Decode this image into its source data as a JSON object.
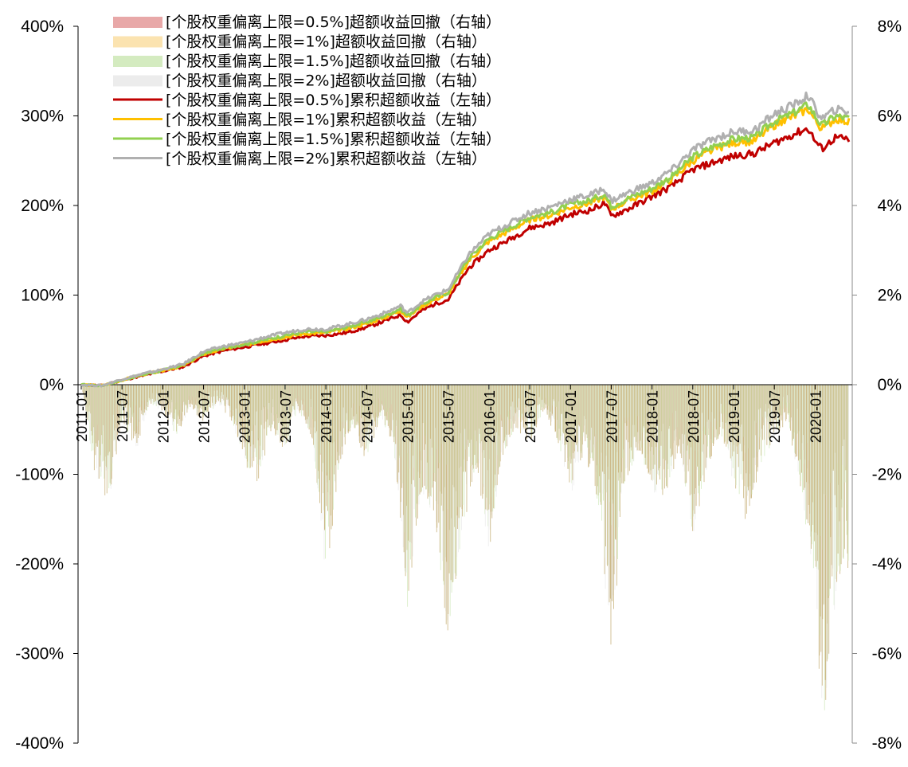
{
  "chart_data": {
    "type": "line",
    "left_axis": {
      "min": -400,
      "max": 400,
      "ticks": [
        "400%",
        "300%",
        "200%",
        "100%",
        "0%",
        "-100%",
        "-200%",
        "-300%",
        "-400%"
      ]
    },
    "right_axis": {
      "min": -8,
      "max": 8,
      "ticks": [
        "8%",
        "6%",
        "4%",
        "2%",
        "0%",
        "-2%",
        "-4%",
        "-6%",
        "-8%"
      ]
    },
    "x_ticks": [
      "2011-01",
      "2011-07",
      "2012-01",
      "2012-07",
      "2013-01",
      "2013-07",
      "2014-01",
      "2014-07",
      "2015-01",
      "2015-07",
      "2016-01",
      "2016-07",
      "2017-01",
      "2017-07",
      "2018-01",
      "2018-07",
      "2019-01",
      "2019-07",
      "2020-01"
    ],
    "x_range": [
      "2011-01",
      "2020-06"
    ],
    "legend": {
      "placement": "top-left",
      "entries": [
        {
          "label": "[个股权重偏离上限=0.5%]超额收益回撤（右轴）",
          "kind": "area",
          "color": "#e8a8a8"
        },
        {
          "label": "[个股权重偏离上限=1%]超额收益回撤（右轴）",
          "kind": "area",
          "color": "#fbe3b0"
        },
        {
          "label": "[个股权重偏离上限=1.5%]超额收益回撤（右轴）",
          "kind": "area",
          "color": "#d4ebc0"
        },
        {
          "label": "[个股权重偏离上限=2%]超额收益回撤（右轴）",
          "kind": "area",
          "color": "#ececec"
        },
        {
          "label": "[个股权重偏离上限=0.5%]累积超额收益（左轴）",
          "kind": "line",
          "color": "#c00000"
        },
        {
          "label": "[个股权重偏离上限=1%]累积超额收益（左轴）",
          "kind": "line",
          "color": "#ffc000"
        },
        {
          "label": "[个股权重偏离上限=1.5%]累积超额收益（左轴）",
          "kind": "line",
          "color": "#92d050"
        },
        {
          "label": "[个股权重偏离上限=2%]累积超额收益（左轴）",
          "kind": "line",
          "color": "#b0b0b0"
        }
      ]
    },
    "line_series": [
      {
        "name": "[个股权重偏离上限=0.5%]累积超额收益（左轴）",
        "axis": "left",
        "color": "#c00000",
        "points": [
          [
            "2011-01",
            0
          ],
          [
            "2011-04",
            -1
          ],
          [
            "2011-07",
            5
          ],
          [
            "2011-10",
            10
          ],
          [
            "2012-01",
            15
          ],
          [
            "2012-04",
            20
          ],
          [
            "2012-07",
            32
          ],
          [
            "2012-10",
            38
          ],
          [
            "2013-01",
            42
          ],
          [
            "2013-04",
            46
          ],
          [
            "2013-07",
            50
          ],
          [
            "2013-10",
            54
          ],
          [
            "2014-01",
            55
          ],
          [
            "2014-04",
            58
          ],
          [
            "2014-07",
            64
          ],
          [
            "2014-10",
            72
          ],
          [
            "2014-12",
            78
          ],
          [
            "2015-01",
            70
          ],
          [
            "2015-03",
            82
          ],
          [
            "2015-05",
            90
          ],
          [
            "2015-07",
            95
          ],
          [
            "2015-10",
            130
          ],
          [
            "2016-01",
            150
          ],
          [
            "2016-04",
            162
          ],
          [
            "2016-07",
            175
          ],
          [
            "2016-10",
            180
          ],
          [
            "2017-01",
            190
          ],
          [
            "2017-04",
            195
          ],
          [
            "2017-06",
            203
          ],
          [
            "2017-07",
            188
          ],
          [
            "2017-10",
            198
          ],
          [
            "2018-01",
            210
          ],
          [
            "2018-04",
            222
          ],
          [
            "2018-07",
            240
          ],
          [
            "2018-10",
            248
          ],
          [
            "2019-01",
            255
          ],
          [
            "2019-04",
            258
          ],
          [
            "2019-07",
            270
          ],
          [
            "2019-10",
            280
          ],
          [
            "2019-12",
            286
          ],
          [
            "2020-01",
            272
          ],
          [
            "2020-02",
            263
          ],
          [
            "2020-04",
            276
          ],
          [
            "2020-06",
            273
          ]
        ]
      },
      {
        "name": "[个股权重偏离上限=1%]累积超额收益（左轴）",
        "axis": "left",
        "color": "#ffc000",
        "points": [
          [
            "2011-01",
            0
          ],
          [
            "2011-04",
            -1
          ],
          [
            "2011-07",
            5
          ],
          [
            "2011-10",
            11
          ],
          [
            "2012-01",
            16
          ],
          [
            "2012-04",
            21
          ],
          [
            "2012-07",
            34
          ],
          [
            "2012-10",
            40
          ],
          [
            "2013-01",
            44
          ],
          [
            "2013-04",
            49
          ],
          [
            "2013-07",
            53
          ],
          [
            "2013-10",
            57
          ],
          [
            "2014-01",
            58
          ],
          [
            "2014-04",
            62
          ],
          [
            "2014-07",
            68
          ],
          [
            "2014-10",
            76
          ],
          [
            "2014-12",
            83
          ],
          [
            "2015-01",
            75
          ],
          [
            "2015-03",
            87
          ],
          [
            "2015-05",
            95
          ],
          [
            "2015-07",
            101
          ],
          [
            "2015-10",
            138
          ],
          [
            "2016-01",
            160
          ],
          [
            "2016-04",
            172
          ],
          [
            "2016-07",
            184
          ],
          [
            "2016-10",
            189
          ],
          [
            "2017-01",
            198
          ],
          [
            "2017-04",
            203
          ],
          [
            "2017-06",
            210
          ],
          [
            "2017-07",
            196
          ],
          [
            "2017-10",
            207
          ],
          [
            "2018-01",
            216
          ],
          [
            "2018-04",
            230
          ],
          [
            "2018-07",
            250
          ],
          [
            "2018-10",
            262
          ],
          [
            "2019-01",
            270
          ],
          [
            "2019-04",
            272
          ],
          [
            "2019-07",
            290
          ],
          [
            "2019-10",
            300
          ],
          [
            "2019-12",
            308
          ],
          [
            "2020-01",
            295
          ],
          [
            "2020-02",
            285
          ],
          [
            "2020-04",
            297
          ],
          [
            "2020-06",
            293
          ]
        ]
      },
      {
        "name": "[个股权重偏离上限=1.5%]累积超额收益（左轴）",
        "axis": "left",
        "color": "#92d050",
        "points": [
          [
            "2011-01",
            0
          ],
          [
            "2011-04",
            -1
          ],
          [
            "2011-07",
            5
          ],
          [
            "2011-10",
            11
          ],
          [
            "2012-01",
            16
          ],
          [
            "2012-04",
            22
          ],
          [
            "2012-07",
            35
          ],
          [
            "2012-10",
            41
          ],
          [
            "2013-01",
            45
          ],
          [
            "2013-04",
            50
          ],
          [
            "2013-07",
            55
          ],
          [
            "2013-10",
            59
          ],
          [
            "2014-01",
            59
          ],
          [
            "2014-04",
            64
          ],
          [
            "2014-07",
            70
          ],
          [
            "2014-10",
            78
          ],
          [
            "2014-12",
            85
          ],
          [
            "2015-01",
            77
          ],
          [
            "2015-03",
            89
          ],
          [
            "2015-05",
            97
          ],
          [
            "2015-07",
            103
          ],
          [
            "2015-10",
            141
          ],
          [
            "2016-01",
            163
          ],
          [
            "2016-04",
            175
          ],
          [
            "2016-07",
            187
          ],
          [
            "2016-10",
            192
          ],
          [
            "2017-01",
            201
          ],
          [
            "2017-04",
            206
          ],
          [
            "2017-06",
            213
          ],
          [
            "2017-07",
            199
          ],
          [
            "2017-10",
            210
          ],
          [
            "2018-01",
            219
          ],
          [
            "2018-04",
            233
          ],
          [
            "2018-07",
            254
          ],
          [
            "2018-10",
            266
          ],
          [
            "2019-01",
            274
          ],
          [
            "2019-04",
            276
          ],
          [
            "2019-07",
            294
          ],
          [
            "2019-10",
            304
          ],
          [
            "2019-12",
            313
          ],
          [
            "2020-01",
            300
          ],
          [
            "2020-02",
            289
          ],
          [
            "2020-04",
            300
          ],
          [
            "2020-06",
            297
          ]
        ]
      },
      {
        "name": "[个股权重偏离上限=2%]累积超额收益（左轴）",
        "axis": "left",
        "color": "#b0b0b0",
        "points": [
          [
            "2011-01",
            0
          ],
          [
            "2011-04",
            -1
          ],
          [
            "2011-07",
            6
          ],
          [
            "2011-10",
            12
          ],
          [
            "2012-01",
            17
          ],
          [
            "2012-04",
            23
          ],
          [
            "2012-07",
            37
          ],
          [
            "2012-10",
            43
          ],
          [
            "2013-01",
            47
          ],
          [
            "2013-04",
            53
          ],
          [
            "2013-07",
            58
          ],
          [
            "2013-10",
            62
          ],
          [
            "2014-01",
            62
          ],
          [
            "2014-04",
            67
          ],
          [
            "2014-07",
            73
          ],
          [
            "2014-10",
            81
          ],
          [
            "2014-12",
            88
          ],
          [
            "2015-01",
            80
          ],
          [
            "2015-03",
            92
          ],
          [
            "2015-05",
            100
          ],
          [
            "2015-07",
            106
          ],
          [
            "2015-10",
            145
          ],
          [
            "2016-01",
            168
          ],
          [
            "2016-04",
            180
          ],
          [
            "2016-07",
            192
          ],
          [
            "2016-10",
            198
          ],
          [
            "2017-01",
            207
          ],
          [
            "2017-04",
            212
          ],
          [
            "2017-06",
            219
          ],
          [
            "2017-07",
            205
          ],
          [
            "2017-10",
            216
          ],
          [
            "2018-01",
            225
          ],
          [
            "2018-04",
            240
          ],
          [
            "2018-07",
            262
          ],
          [
            "2018-10",
            274
          ],
          [
            "2019-01",
            282
          ],
          [
            "2019-04",
            284
          ],
          [
            "2019-07",
            302
          ],
          [
            "2019-10",
            313
          ],
          [
            "2019-12",
            323
          ],
          [
            "2020-01",
            308
          ],
          [
            "2020-02",
            297
          ],
          [
            "2020-04",
            307
          ],
          [
            "2020-06",
            305
          ]
        ]
      }
    ],
    "drawdown_series": {
      "axis": "right",
      "colors": [
        "#e8a8a8",
        "#fbe3b0",
        "#d4ebc0",
        "#ececec"
      ],
      "fill_color": "#c8b27a",
      "troughs": [
        [
          "2011-01",
          0
        ],
        [
          "2011-03",
          -2.0
        ],
        [
          "2011-05",
          -2.7
        ],
        [
          "2011-07",
          -0.8
        ],
        [
          "2011-09",
          -1.6
        ],
        [
          "2011-11",
          -0.4
        ],
        [
          "2012-01",
          -0.6
        ],
        [
          "2012-03",
          -1.2
        ],
        [
          "2012-05",
          -0.5
        ],
        [
          "2012-07",
          -0.9
        ],
        [
          "2012-09",
          -0.4
        ],
        [
          "2012-11",
          -0.8
        ],
        [
          "2013-01",
          -1.8
        ],
        [
          "2013-03",
          -2.2
        ],
        [
          "2013-05",
          -1.0
        ],
        [
          "2013-07",
          -1.5
        ],
        [
          "2013-09",
          -0.6
        ],
        [
          "2013-11",
          -1.2
        ],
        [
          "2014-01",
          -4.5
        ],
        [
          "2014-03",
          -1.8
        ],
        [
          "2014-05",
          -0.9
        ],
        [
          "2014-07",
          -1.8
        ],
        [
          "2014-09",
          -0.7
        ],
        [
          "2014-11",
          -1.4
        ],
        [
          "2015-01",
          -5.0
        ],
        [
          "2015-03",
          -2.4
        ],
        [
          "2015-05",
          -3.0
        ],
        [
          "2015-07",
          -5.8
        ],
        [
          "2015-09",
          -3.5
        ],
        [
          "2015-11",
          -1.8
        ],
        [
          "2016-01",
          -3.8
        ],
        [
          "2016-03",
          -1.6
        ],
        [
          "2016-05",
          -1.0
        ],
        [
          "2016-07",
          -1.3
        ],
        [
          "2016-09",
          -0.6
        ],
        [
          "2016-11",
          -1.2
        ],
        [
          "2017-01",
          -2.5
        ],
        [
          "2017-03",
          -1.5
        ],
        [
          "2017-05",
          -2.6
        ],
        [
          "2017-07",
          -6.1
        ],
        [
          "2017-09",
          -2.2
        ],
        [
          "2017-11",
          -1.5
        ],
        [
          "2018-01",
          -2.4
        ],
        [
          "2018-03",
          -2.6
        ],
        [
          "2018-05",
          -1.4
        ],
        [
          "2018-07",
          -3.4
        ],
        [
          "2018-09",
          -2.0
        ],
        [
          "2018-11",
          -1.1
        ],
        [
          "2019-01",
          -2.2
        ],
        [
          "2019-03",
          -3.2
        ],
        [
          "2019-05",
          -1.8
        ],
        [
          "2019-07",
          -1.2
        ],
        [
          "2019-09",
          -0.8
        ],
        [
          "2019-11",
          -2.6
        ],
        [
          "2020-01",
          -4.4
        ],
        [
          "2020-02",
          -8.0
        ],
        [
          "2020-03",
          -6.4
        ],
        [
          "2020-04",
          -4.8
        ],
        [
          "2020-05",
          -4.0
        ],
        [
          "2020-06",
          -4.2
        ]
      ]
    }
  }
}
